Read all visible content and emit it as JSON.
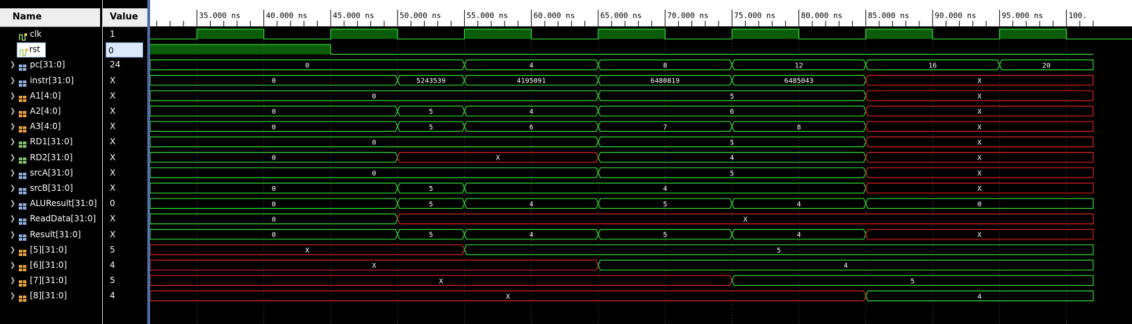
{
  "panel": {
    "name_header": "Name",
    "value_header": "Value"
  },
  "timeline": {
    "ticks": [
      "35.000 ns",
      "40.000 ns",
      "45.000 ns",
      "50.000 ns",
      "55.000 ns",
      "60.000 ns",
      "65.000 ns",
      "70.000 ns",
      "75.000 ns",
      "80.000 ns",
      "85.000 ns",
      "90.000 ns",
      "95.000 ns",
      "100."
    ],
    "start_ns": 31.5,
    "ns_per_major": 5
  },
  "colors": {
    "wave": "#33dd33",
    "undefined": "#dd2222",
    "text": "#ffffff",
    "grid": "#555555",
    "high_fill": "#0b5c0b"
  },
  "signals": [
    {
      "name": "clk",
      "value": "1",
      "type": "bit",
      "icon": "bit-icon",
      "expandable": false,
      "clock": true
    },
    {
      "name": "rst",
      "value": "0",
      "type": "bit",
      "icon": "bit-icon",
      "expandable": false,
      "selected": true,
      "segments": [
        {
          "t0": 31.5,
          "t1": 45.0,
          "v": "1"
        },
        {
          "t0": 45.0,
          "t1": 102.0,
          "v": "0"
        }
      ]
    },
    {
      "name": "pc[31:0]",
      "value": "24",
      "type": "bus",
      "icon": "bus-icon",
      "expandable": true,
      "segments": [
        {
          "t0": 31.5,
          "t1": 55.0,
          "v": "0"
        },
        {
          "t0": 55.0,
          "t1": 65.0,
          "v": "4"
        },
        {
          "t0": 65.0,
          "t1": 75.0,
          "v": "8"
        },
        {
          "t0": 75.0,
          "t1": 85.0,
          "v": "12"
        },
        {
          "t0": 85.0,
          "t1": 95.0,
          "v": "16"
        },
        {
          "t0": 95.0,
          "t1": 102.0,
          "v": "20"
        }
      ]
    },
    {
      "name": "instr[31:0]",
      "value": "X",
      "type": "bus",
      "icon": "bus-icon",
      "expandable": true,
      "segments": [
        {
          "t0": 31.5,
          "t1": 50.0,
          "v": "0"
        },
        {
          "t0": 50.0,
          "t1": 55.0,
          "v": "5243539"
        },
        {
          "t0": 55.0,
          "t1": 65.0,
          "v": "4195091"
        },
        {
          "t0": 65.0,
          "t1": 75.0,
          "v": "6480819"
        },
        {
          "t0": 75.0,
          "t1": 85.0,
          "v": "6485043"
        },
        {
          "t0": 85.0,
          "t1": 102.0,
          "v": "X"
        }
      ]
    },
    {
      "name": "A1[4:0]",
      "value": "X",
      "type": "bus",
      "icon": "bus-orange-icon",
      "expandable": true,
      "segments": [
        {
          "t0": 31.5,
          "t1": 65.0,
          "v": "0"
        },
        {
          "t0": 65.0,
          "t1": 85.0,
          "v": "5"
        },
        {
          "t0": 85.0,
          "t1": 102.0,
          "v": "X"
        }
      ]
    },
    {
      "name": "A2[4:0]",
      "value": "X",
      "type": "bus",
      "icon": "bus-orange-icon",
      "expandable": true,
      "segments": [
        {
          "t0": 31.5,
          "t1": 50.0,
          "v": "0"
        },
        {
          "t0": 50.0,
          "t1": 55.0,
          "v": "5"
        },
        {
          "t0": 55.0,
          "t1": 65.0,
          "v": "4"
        },
        {
          "t0": 65.0,
          "t1": 85.0,
          "v": "6"
        },
        {
          "t0": 85.0,
          "t1": 102.0,
          "v": "X"
        }
      ]
    },
    {
      "name": "A3[4:0]",
      "value": "X",
      "type": "bus",
      "icon": "bus-orange-icon",
      "expandable": true,
      "segments": [
        {
          "t0": 31.5,
          "t1": 50.0,
          "v": "0"
        },
        {
          "t0": 50.0,
          "t1": 55.0,
          "v": "5"
        },
        {
          "t0": 55.0,
          "t1": 65.0,
          "v": "6"
        },
        {
          "t0": 65.0,
          "t1": 75.0,
          "v": "7"
        },
        {
          "t0": 75.0,
          "t1": 85.0,
          "v": "8"
        },
        {
          "t0": 85.0,
          "t1": 102.0,
          "v": "X"
        }
      ]
    },
    {
      "name": "RD1[31:0]",
      "value": "X",
      "type": "bus",
      "icon": "bus-green-icon",
      "expandable": true,
      "segments": [
        {
          "t0": 31.5,
          "t1": 65.0,
          "v": "0"
        },
        {
          "t0": 65.0,
          "t1": 85.0,
          "v": "5"
        },
        {
          "t0": 85.0,
          "t1": 102.0,
          "v": "X"
        }
      ]
    },
    {
      "name": "RD2[31:0]",
      "value": "X",
      "type": "bus",
      "icon": "bus-green-icon",
      "expandable": true,
      "segments": [
        {
          "t0": 31.5,
          "t1": 50.0,
          "v": "0"
        },
        {
          "t0": 50.0,
          "t1": 65.0,
          "v": "X"
        },
        {
          "t0": 65.0,
          "t1": 85.0,
          "v": "4"
        },
        {
          "t0": 85.0,
          "t1": 102.0,
          "v": "X"
        }
      ]
    },
    {
      "name": "srcA[31:0]",
      "value": "X",
      "type": "bus",
      "icon": "bus-icon",
      "expandable": true,
      "segments": [
        {
          "t0": 31.5,
          "t1": 65.0,
          "v": "0"
        },
        {
          "t0": 65.0,
          "t1": 85.0,
          "v": "5"
        },
        {
          "t0": 85.0,
          "t1": 102.0,
          "v": "X"
        }
      ]
    },
    {
      "name": "srcB[31:0]",
      "value": "X",
      "type": "bus",
      "icon": "bus-icon",
      "expandable": true,
      "segments": [
        {
          "t0": 31.5,
          "t1": 50.0,
          "v": "0"
        },
        {
          "t0": 50.0,
          "t1": 55.0,
          "v": "5"
        },
        {
          "t0": 55.0,
          "t1": 85.0,
          "v": "4"
        },
        {
          "t0": 85.0,
          "t1": 102.0,
          "v": "X"
        }
      ]
    },
    {
      "name": "ALUResult[31:0]",
      "value": "0",
      "type": "bus",
      "icon": "bus-icon",
      "expandable": true,
      "segments": [
        {
          "t0": 31.5,
          "t1": 50.0,
          "v": "0"
        },
        {
          "t0": 50.0,
          "t1": 55.0,
          "v": "5"
        },
        {
          "t0": 55.0,
          "t1": 65.0,
          "v": "4"
        },
        {
          "t0": 65.0,
          "t1": 75.0,
          "v": "5"
        },
        {
          "t0": 75.0,
          "t1": 85.0,
          "v": "4"
        },
        {
          "t0": 85.0,
          "t1": 102.0,
          "v": "0"
        }
      ]
    },
    {
      "name": "ReadData[31:0]",
      "value": "X",
      "type": "bus",
      "icon": "bus-icon",
      "expandable": true,
      "segments": [
        {
          "t0": 31.5,
          "t1": 50.0,
          "v": "0"
        },
        {
          "t0": 50.0,
          "t1": 102.0,
          "v": "X"
        }
      ]
    },
    {
      "name": "Result[31:0]",
      "value": "X",
      "type": "bus",
      "icon": "bus-icon",
      "expandable": true,
      "segments": [
        {
          "t0": 31.5,
          "t1": 50.0,
          "v": "0"
        },
        {
          "t0": 50.0,
          "t1": 55.0,
          "v": "5"
        },
        {
          "t0": 55.0,
          "t1": 65.0,
          "v": "4"
        },
        {
          "t0": 65.0,
          "t1": 75.0,
          "v": "5"
        },
        {
          "t0": 75.0,
          "t1": 85.0,
          "v": "4"
        },
        {
          "t0": 85.0,
          "t1": 102.0,
          "v": "X"
        }
      ]
    },
    {
      "name": "[5][31:0]",
      "value": "5",
      "type": "bus",
      "icon": "bus-orange-icon",
      "expandable": true,
      "segments": [
        {
          "t0": 31.5,
          "t1": 55.0,
          "v": "X"
        },
        {
          "t0": 55.0,
          "t1": 102.0,
          "v": "5"
        }
      ]
    },
    {
      "name": "[6][31:0]",
      "value": "4",
      "type": "bus",
      "icon": "bus-orange-icon",
      "expandable": true,
      "segments": [
        {
          "t0": 31.5,
          "t1": 65.0,
          "v": "X"
        },
        {
          "t0": 65.0,
          "t1": 102.0,
          "v": "4"
        }
      ]
    },
    {
      "name": "[7][31:0]",
      "value": "5",
      "type": "bus",
      "icon": "bus-orange-icon",
      "expandable": true,
      "segments": [
        {
          "t0": 31.5,
          "t1": 75.0,
          "v": "X"
        },
        {
          "t0": 75.0,
          "t1": 102.0,
          "v": "5"
        }
      ]
    },
    {
      "name": "[8][31:0]",
      "value": "4",
      "type": "bus",
      "icon": "bus-orange-icon",
      "expandable": true,
      "segments": [
        {
          "t0": 31.5,
          "t1": 85.0,
          "v": "X"
        },
        {
          "t0": 85.0,
          "t1": 102.0,
          "v": "4"
        }
      ]
    }
  ],
  "clock": {
    "period_ns": 10,
    "high_ns": 5,
    "first_rise_ns": 35.0
  }
}
